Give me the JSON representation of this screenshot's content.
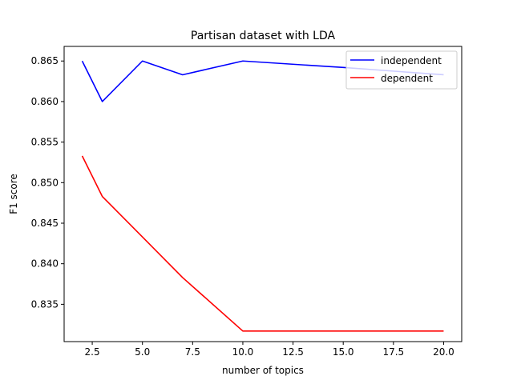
{
  "chart_data": {
    "type": "line",
    "title": "Partisan dataset with LDA",
    "xlabel": "number of topics",
    "ylabel": "F1 score",
    "xlim": [
      1.1,
      20.9
    ],
    "ylim": [
      0.8304,
      0.8668
    ],
    "xticks": [
      2.5,
      5.0,
      7.5,
      10.0,
      12.5,
      15.0,
      17.5,
      20.0
    ],
    "xtick_labels": [
      "2.5",
      "5.0",
      "7.5",
      "10.0",
      "12.5",
      "15.0",
      "17.5",
      "20.0"
    ],
    "yticks": [
      0.835,
      0.84,
      0.845,
      0.85,
      0.855,
      0.86,
      0.865
    ],
    "ytick_labels": [
      "0.835",
      "0.840",
      "0.845",
      "0.850",
      "0.855",
      "0.860",
      "0.865"
    ],
    "grid": false,
    "legend_position": "top-right",
    "series": [
      {
        "name": "independent",
        "color": "#0000ff",
        "x": [
          2,
          3,
          5,
          7,
          10,
          15,
          20
        ],
        "y": [
          0.865,
          0.86,
          0.865,
          0.8633,
          0.865,
          0.8642,
          0.8633
        ]
      },
      {
        "name": "dependent",
        "color": "#ff0000",
        "x": [
          2,
          3,
          5,
          7,
          10,
          15,
          20
        ],
        "y": [
          0.8533,
          0.8483,
          0.8433,
          0.8383,
          0.8317,
          0.8317,
          0.8317
        ]
      }
    ]
  }
}
